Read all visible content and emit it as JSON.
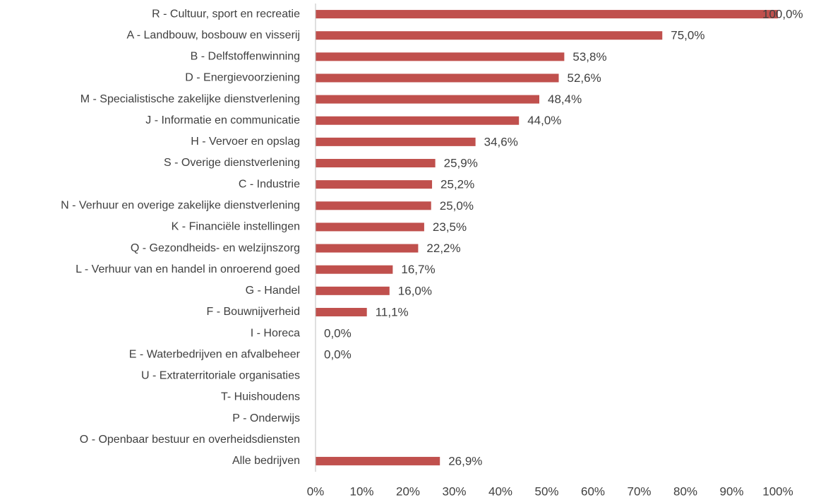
{
  "chart_data": {
    "type": "bar",
    "orientation": "horizontal",
    "color": "#c0504d",
    "categories": [
      "R - Cultuur, sport en recreatie",
      "A - Landbouw, bosbouw en visserij",
      "B - Delfstoffenwinning",
      "D - Energievoorziening",
      "M - Specialistische zakelijke dienstverlening",
      "J - Informatie en communicatie",
      "H - Vervoer en opslag",
      "S - Overige dienstverlening",
      "C - Industrie",
      "N - Verhuur en overige zakelijke dienstverlening",
      "K - Financiële instellingen",
      "Q - Gezondheids- en welzijnszorg",
      "L - Verhuur van en handel in onroerend goed",
      "G - Handel",
      "F - Bouwnijverheid",
      "I - Horeca",
      "E - Waterbedrijven en afvalbeheer",
      "U - Extraterritoriale organisaties",
      "T- Huishoudens",
      "P - Onderwijs",
      "O - Openbaar bestuur en overheidsdiensten",
      "Alle bedrijven"
    ],
    "values": [
      100,
      75,
      53.8,
      52.6,
      48.4,
      44,
      34.6,
      25.9,
      25.2,
      25,
      23.5,
      22.2,
      16.7,
      16,
      11.1,
      0,
      0,
      null,
      null,
      null,
      null,
      26.9
    ],
    "value_labels": [
      "100,0%",
      "75,0%",
      "53,8%",
      "52,6%",
      "48,4%",
      "44,0%",
      "34,6%",
      "25,9%",
      "25,2%",
      "25,0%",
      "23,5%",
      "22,2%",
      "16,7%",
      "16,0%",
      "11,1%",
      "0,0%",
      "0,0%",
      null,
      null,
      null,
      null,
      "26,9%"
    ],
    "xlim": [
      0,
      100
    ],
    "xticks": [
      {
        "value": 0,
        "label": "0%"
      },
      {
        "value": 10,
        "label": "10%"
      },
      {
        "value": 20,
        "label": "20%"
      },
      {
        "value": 30,
        "label": "30%"
      },
      {
        "value": 40,
        "label": "40%"
      },
      {
        "value": 50,
        "label": "50%"
      },
      {
        "value": 60,
        "label": "60%"
      },
      {
        "value": 70,
        "label": "70%"
      },
      {
        "value": 80,
        "label": "80%"
      },
      {
        "value": 90,
        "label": "90%"
      },
      {
        "value": 100,
        "label": "100%"
      }
    ],
    "grid": false
  }
}
